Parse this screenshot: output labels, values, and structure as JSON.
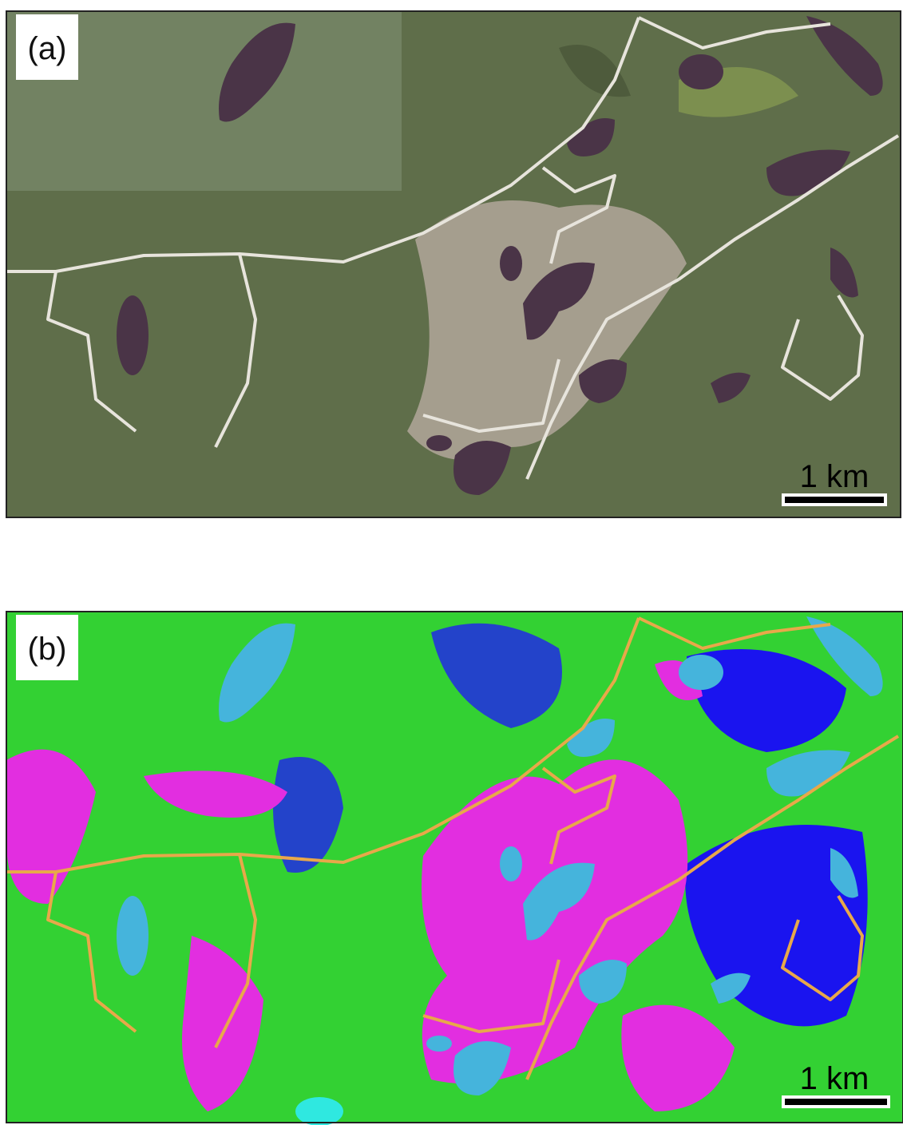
{
  "panels": [
    {
      "label": "(a)",
      "scale_bar": "1 km"
    },
    {
      "label": "(b)",
      "scale_bar": "1 km"
    }
  ]
}
